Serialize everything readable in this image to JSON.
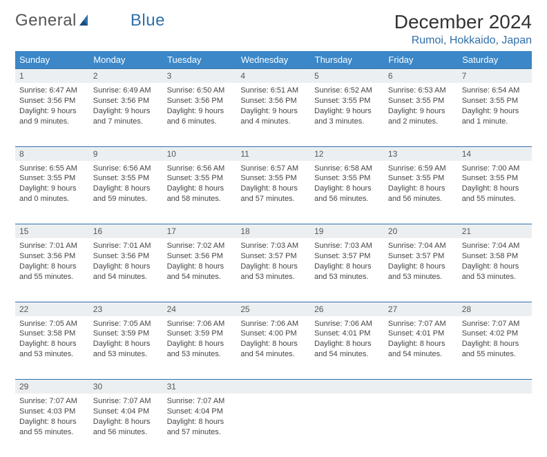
{
  "logo": {
    "text_general": "General",
    "text_blue": "Blue"
  },
  "month_title": "December 2024",
  "location": "Rumoi, Hokkaido, Japan",
  "colors": {
    "header_bg": "#3b87c8",
    "accent": "#2f6fa8",
    "daynum_bg": "#eceff1",
    "text": "#444444"
  },
  "day_headers": [
    "Sunday",
    "Monday",
    "Tuesday",
    "Wednesday",
    "Thursday",
    "Friday",
    "Saturday"
  ],
  "weeks": [
    [
      {
        "n": "1",
        "sunrise": "Sunrise: 6:47 AM",
        "sunset": "Sunset: 3:56 PM",
        "dl1": "Daylight: 9 hours",
        "dl2": "and 9 minutes."
      },
      {
        "n": "2",
        "sunrise": "Sunrise: 6:49 AM",
        "sunset": "Sunset: 3:56 PM",
        "dl1": "Daylight: 9 hours",
        "dl2": "and 7 minutes."
      },
      {
        "n": "3",
        "sunrise": "Sunrise: 6:50 AM",
        "sunset": "Sunset: 3:56 PM",
        "dl1": "Daylight: 9 hours",
        "dl2": "and 6 minutes."
      },
      {
        "n": "4",
        "sunrise": "Sunrise: 6:51 AM",
        "sunset": "Sunset: 3:56 PM",
        "dl1": "Daylight: 9 hours",
        "dl2": "and 4 minutes."
      },
      {
        "n": "5",
        "sunrise": "Sunrise: 6:52 AM",
        "sunset": "Sunset: 3:55 PM",
        "dl1": "Daylight: 9 hours",
        "dl2": "and 3 minutes."
      },
      {
        "n": "6",
        "sunrise": "Sunrise: 6:53 AM",
        "sunset": "Sunset: 3:55 PM",
        "dl1": "Daylight: 9 hours",
        "dl2": "and 2 minutes."
      },
      {
        "n": "7",
        "sunrise": "Sunrise: 6:54 AM",
        "sunset": "Sunset: 3:55 PM",
        "dl1": "Daylight: 9 hours",
        "dl2": "and 1 minute."
      }
    ],
    [
      {
        "n": "8",
        "sunrise": "Sunrise: 6:55 AM",
        "sunset": "Sunset: 3:55 PM",
        "dl1": "Daylight: 9 hours",
        "dl2": "and 0 minutes."
      },
      {
        "n": "9",
        "sunrise": "Sunrise: 6:56 AM",
        "sunset": "Sunset: 3:55 PM",
        "dl1": "Daylight: 8 hours",
        "dl2": "and 59 minutes."
      },
      {
        "n": "10",
        "sunrise": "Sunrise: 6:56 AM",
        "sunset": "Sunset: 3:55 PM",
        "dl1": "Daylight: 8 hours",
        "dl2": "and 58 minutes."
      },
      {
        "n": "11",
        "sunrise": "Sunrise: 6:57 AM",
        "sunset": "Sunset: 3:55 PM",
        "dl1": "Daylight: 8 hours",
        "dl2": "and 57 minutes."
      },
      {
        "n": "12",
        "sunrise": "Sunrise: 6:58 AM",
        "sunset": "Sunset: 3:55 PM",
        "dl1": "Daylight: 8 hours",
        "dl2": "and 56 minutes."
      },
      {
        "n": "13",
        "sunrise": "Sunrise: 6:59 AM",
        "sunset": "Sunset: 3:55 PM",
        "dl1": "Daylight: 8 hours",
        "dl2": "and 56 minutes."
      },
      {
        "n": "14",
        "sunrise": "Sunrise: 7:00 AM",
        "sunset": "Sunset: 3:55 PM",
        "dl1": "Daylight: 8 hours",
        "dl2": "and 55 minutes."
      }
    ],
    [
      {
        "n": "15",
        "sunrise": "Sunrise: 7:01 AM",
        "sunset": "Sunset: 3:56 PM",
        "dl1": "Daylight: 8 hours",
        "dl2": "and 55 minutes."
      },
      {
        "n": "16",
        "sunrise": "Sunrise: 7:01 AM",
        "sunset": "Sunset: 3:56 PM",
        "dl1": "Daylight: 8 hours",
        "dl2": "and 54 minutes."
      },
      {
        "n": "17",
        "sunrise": "Sunrise: 7:02 AM",
        "sunset": "Sunset: 3:56 PM",
        "dl1": "Daylight: 8 hours",
        "dl2": "and 54 minutes."
      },
      {
        "n": "18",
        "sunrise": "Sunrise: 7:03 AM",
        "sunset": "Sunset: 3:57 PM",
        "dl1": "Daylight: 8 hours",
        "dl2": "and 53 minutes."
      },
      {
        "n": "19",
        "sunrise": "Sunrise: 7:03 AM",
        "sunset": "Sunset: 3:57 PM",
        "dl1": "Daylight: 8 hours",
        "dl2": "and 53 minutes."
      },
      {
        "n": "20",
        "sunrise": "Sunrise: 7:04 AM",
        "sunset": "Sunset: 3:57 PM",
        "dl1": "Daylight: 8 hours",
        "dl2": "and 53 minutes."
      },
      {
        "n": "21",
        "sunrise": "Sunrise: 7:04 AM",
        "sunset": "Sunset: 3:58 PM",
        "dl1": "Daylight: 8 hours",
        "dl2": "and 53 minutes."
      }
    ],
    [
      {
        "n": "22",
        "sunrise": "Sunrise: 7:05 AM",
        "sunset": "Sunset: 3:58 PM",
        "dl1": "Daylight: 8 hours",
        "dl2": "and 53 minutes."
      },
      {
        "n": "23",
        "sunrise": "Sunrise: 7:05 AM",
        "sunset": "Sunset: 3:59 PM",
        "dl1": "Daylight: 8 hours",
        "dl2": "and 53 minutes."
      },
      {
        "n": "24",
        "sunrise": "Sunrise: 7:06 AM",
        "sunset": "Sunset: 3:59 PM",
        "dl1": "Daylight: 8 hours",
        "dl2": "and 53 minutes."
      },
      {
        "n": "25",
        "sunrise": "Sunrise: 7:06 AM",
        "sunset": "Sunset: 4:00 PM",
        "dl1": "Daylight: 8 hours",
        "dl2": "and 54 minutes."
      },
      {
        "n": "26",
        "sunrise": "Sunrise: 7:06 AM",
        "sunset": "Sunset: 4:01 PM",
        "dl1": "Daylight: 8 hours",
        "dl2": "and 54 minutes."
      },
      {
        "n": "27",
        "sunrise": "Sunrise: 7:07 AM",
        "sunset": "Sunset: 4:01 PM",
        "dl1": "Daylight: 8 hours",
        "dl2": "and 54 minutes."
      },
      {
        "n": "28",
        "sunrise": "Sunrise: 7:07 AM",
        "sunset": "Sunset: 4:02 PM",
        "dl1": "Daylight: 8 hours",
        "dl2": "and 55 minutes."
      }
    ],
    [
      {
        "n": "29",
        "sunrise": "Sunrise: 7:07 AM",
        "sunset": "Sunset: 4:03 PM",
        "dl1": "Daylight: 8 hours",
        "dl2": "and 55 minutes."
      },
      {
        "n": "30",
        "sunrise": "Sunrise: 7:07 AM",
        "sunset": "Sunset: 4:04 PM",
        "dl1": "Daylight: 8 hours",
        "dl2": "and 56 minutes."
      },
      {
        "n": "31",
        "sunrise": "Sunrise: 7:07 AM",
        "sunset": "Sunset: 4:04 PM",
        "dl1": "Daylight: 8 hours",
        "dl2": "and 57 minutes."
      },
      null,
      null,
      null,
      null
    ]
  ]
}
